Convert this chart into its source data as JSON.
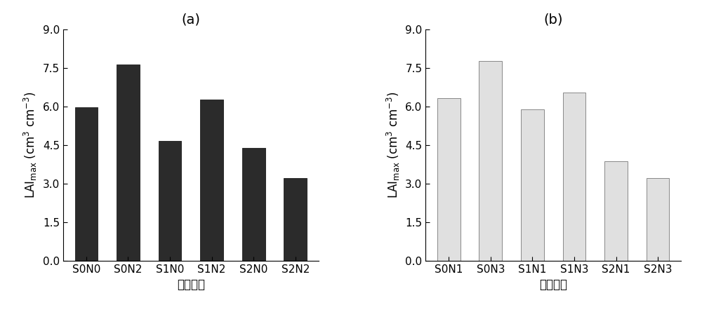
{
  "chart_a": {
    "title": "(a)",
    "categories": [
      "S0N0",
      "S0N2",
      "S1N0",
      "S1N2",
      "S2N0",
      "S2N2"
    ],
    "values": [
      5.97,
      7.62,
      4.65,
      6.28,
      4.38,
      3.22
    ],
    "bar_color": "#2b2b2b",
    "bar_edge_color": "#2b2b2b",
    "xlabel": "实验处理",
    "ylim": [
      0,
      9.0
    ],
    "yticks": [
      0.0,
      1.5,
      3.0,
      4.5,
      6.0,
      7.5,
      9.0
    ]
  },
  "chart_b": {
    "title": "(b)",
    "categories": [
      "S0N1",
      "S0N3",
      "S1N1",
      "S1N3",
      "S2N1",
      "S2N3"
    ],
    "values": [
      6.33,
      7.78,
      5.88,
      6.55,
      3.87,
      3.22
    ],
    "bar_color": "#e0e0e0",
    "bar_edge_color": "#888888",
    "xlabel": "实验处理",
    "ylim": [
      0,
      9.0
    ],
    "yticks": [
      0.0,
      1.5,
      3.0,
      4.5,
      6.0,
      7.5,
      9.0
    ]
  },
  "ylabel": "LAI$_\\mathrm{max}$ (cm$^3$ cm$^{-3}$)",
  "fig_width": 10.0,
  "fig_height": 4.65,
  "background_color": "#ffffff",
  "title_fontsize": 14,
  "label_fontsize": 12,
  "tick_fontsize": 11
}
